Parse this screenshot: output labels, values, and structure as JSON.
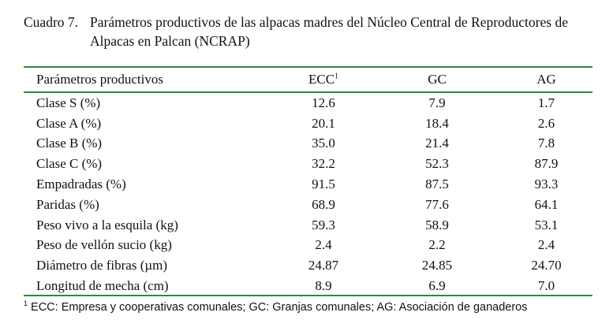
{
  "caption": {
    "label": "Cuadro 7.",
    "title": "Parámetros productivos de las alpacas madres del Núcleo Central de Reproductores de Alpacas en Palcan (NCRAP)"
  },
  "table": {
    "headers": [
      "Parámetros productivos",
      "ECC",
      "GC",
      "AG"
    ],
    "header_sup": "1",
    "rows": [
      [
        "Clase S (%)",
        "12.6",
        "7.9",
        "1.7"
      ],
      [
        "Clase A (%)",
        "20.1",
        "18.4",
        "2.6"
      ],
      [
        "Clase B (%)",
        "35.0",
        "21.4",
        "7.8"
      ],
      [
        "Clase C (%)",
        "32.2",
        "52.3",
        "87.9"
      ],
      [
        "Empadradas (%)",
        "91.5",
        "87.5",
        "93.3"
      ],
      [
        "Paridas (%)",
        "68.9",
        "77.6",
        "64.1"
      ],
      [
        "Peso vivo a la esquila (kg)",
        "59.3",
        "58.9",
        "53.1"
      ],
      [
        "Peso de vellón sucio (kg)",
        "2.4",
        "2.2",
        "2.4"
      ],
      [
        "Diámetro de fibras (µm)",
        "24.87",
        "24.85",
        "24.70"
      ],
      [
        "Longitud de mecha (cm)",
        "8.9",
        "6.9",
        "7.0"
      ]
    ]
  },
  "footnote": {
    "marker": "1",
    "text": " ECC: Empresa y cooperativas comunales; GC: Granjas comunales; AG: Asociación de ganaderos"
  },
  "colors": {
    "rule": "#2f8a3a"
  }
}
